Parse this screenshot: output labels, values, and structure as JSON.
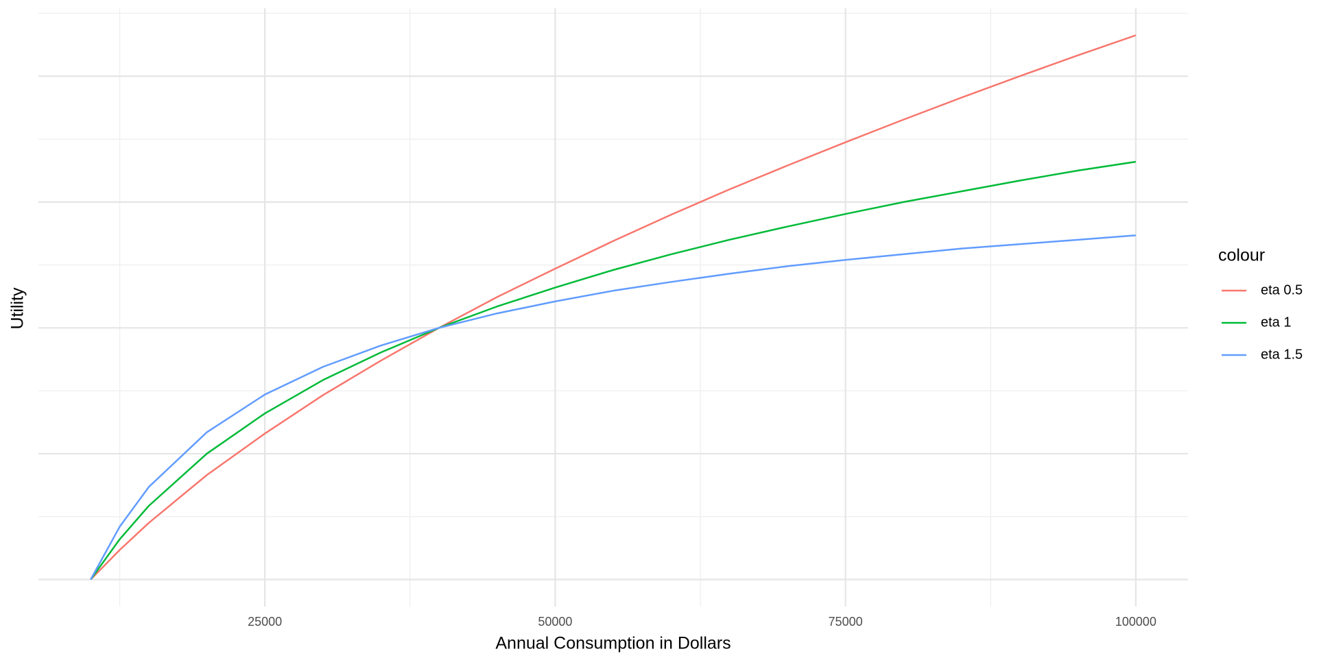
{
  "chart_data": {
    "type": "line",
    "x_label": "Annual Consumption in Dollars",
    "y_label": "Utility",
    "legend_title": "colour",
    "legend_position": "right",
    "x": [
      10000,
      12500,
      15000,
      20000,
      25000,
      30000,
      35000,
      40000,
      45000,
      50000,
      55000,
      60000,
      65000,
      70000,
      75000,
      80000,
      85000,
      90000,
      95000,
      100000
    ],
    "series": [
      {
        "name": "eta 0.5",
        "color": "#F8766D",
        "values": [
          0,
          0.47,
          0.9,
          1.66,
          2.32,
          2.93,
          3.48,
          4.0,
          4.49,
          4.94,
          5.38,
          5.8,
          6.2,
          6.58,
          6.95,
          7.31,
          7.66,
          8.0,
          8.33,
          8.65
        ]
      },
      {
        "name": "eta 1",
        "color": "#00BA38",
        "values": [
          0,
          0.64,
          1.17,
          2.0,
          2.64,
          3.17,
          3.61,
          4.0,
          4.34,
          4.64,
          4.92,
          5.17,
          5.4,
          5.61,
          5.81,
          6.0,
          6.17,
          6.34,
          6.5,
          6.64
        ]
      },
      {
        "name": "eta 1.5",
        "color": "#619CFF",
        "values": [
          0,
          0.84,
          1.47,
          2.34,
          2.94,
          3.38,
          3.72,
          4.0,
          4.23,
          4.42,
          4.59,
          4.73,
          4.86,
          4.98,
          5.08,
          5.17,
          5.26,
          5.33,
          5.4,
          5.47
        ]
      }
    ],
    "xlim": [
      5500,
      104500
    ],
    "ylim": [
      -0.43,
      9.08
    ],
    "xticks": [
      25000,
      50000,
      75000,
      100000
    ],
    "x_minor_grid": [
      12500,
      37500,
      62500,
      87500
    ],
    "y_major_grid": [
      0,
      2,
      4,
      6,
      8
    ],
    "y_minor_grid": [
      1,
      3,
      5,
      7,
      9
    ],
    "grid": true
  }
}
